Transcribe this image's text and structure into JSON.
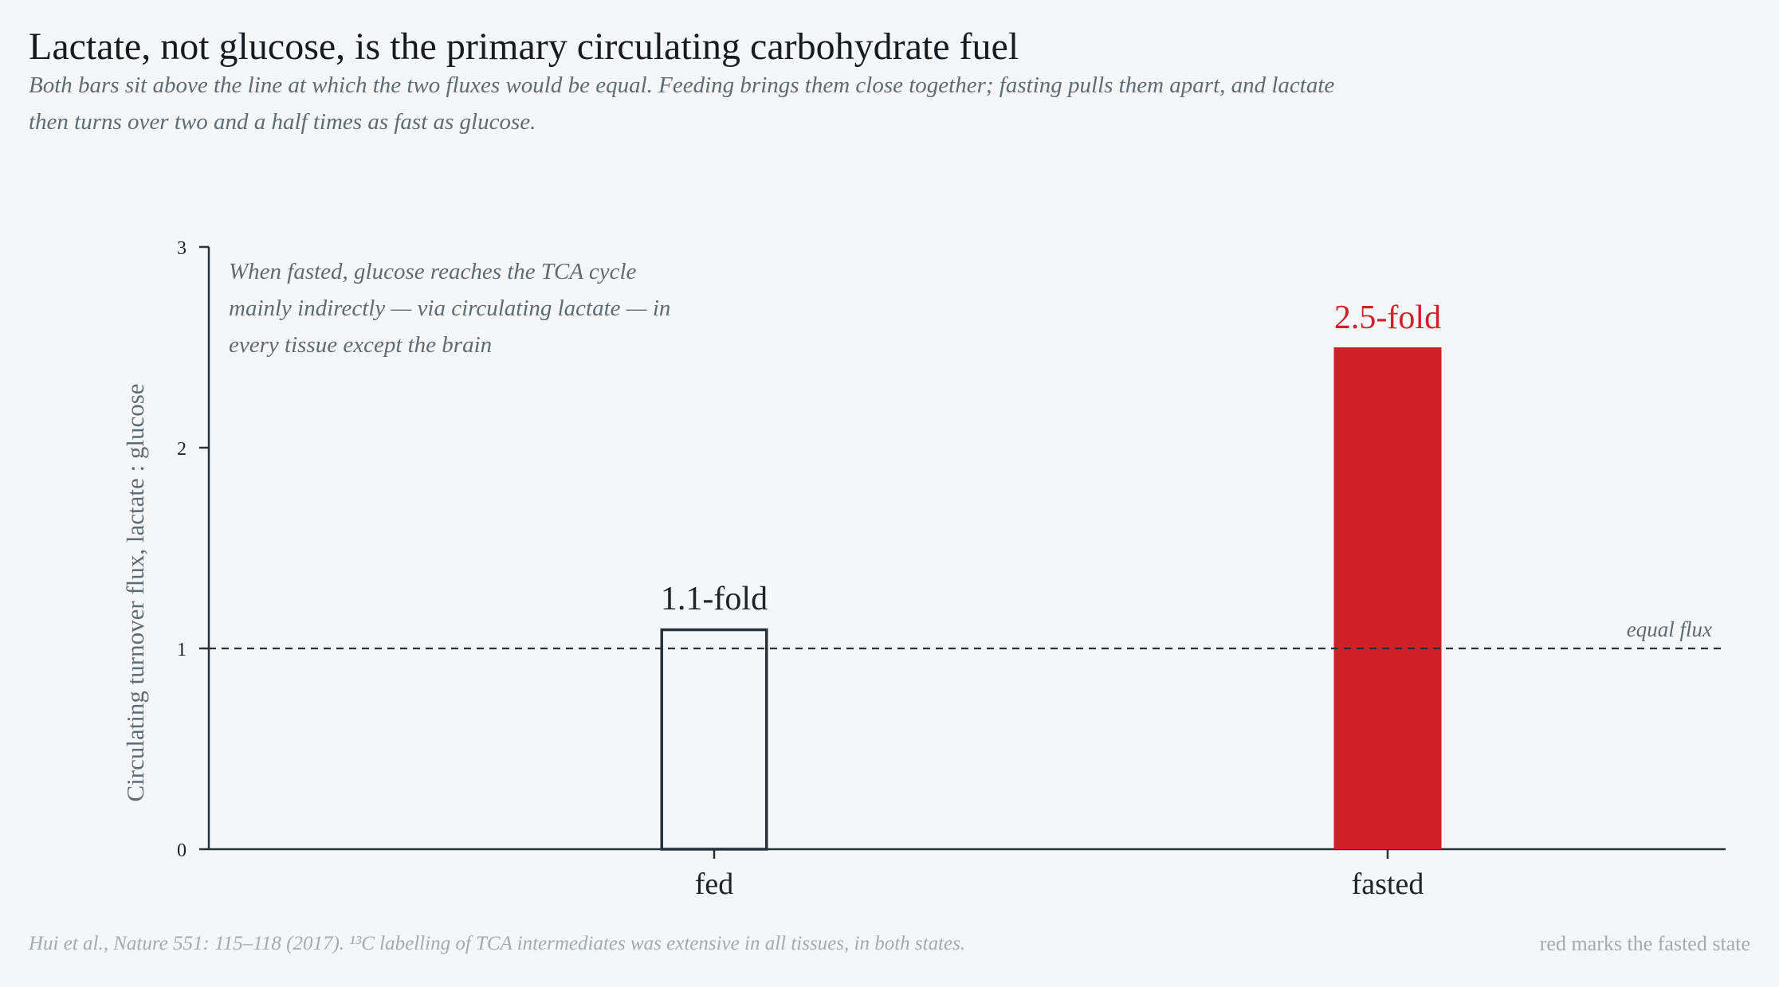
{
  "chart_data": {
    "type": "bar",
    "title": "Lactate, not glucose, is the primary circulating carbohydrate fuel",
    "subtitle": "Both bars sit above the line at which the two fluxes would be equal. Feeding brings them close together; fasting pulls them apart, and lactate then turns over two and a half times as fast as glucose.",
    "xlabel": "",
    "ylabel": "Circulating turnover flux, lactate : glucose",
    "categories": [
      "fed",
      "fasted"
    ],
    "values": [
      1.1,
      2.5
    ],
    "data_labels": [
      "1.1-fold",
      "2.5-fold"
    ],
    "ylim": [
      0,
      3
    ],
    "yticks": [
      0,
      1,
      2,
      3
    ],
    "ytick_labels": [
      "0",
      "1",
      "2",
      "3"
    ],
    "grid": false,
    "legend": "none",
    "reference_line": {
      "value": 1,
      "label": "equal flux"
    },
    "annotation": "When fasted, glucose reaches the TCA cycle mainly indirectly — via circulating lactate — in every tissue except the brain",
    "highlight": {
      "category": "fasted",
      "color": "#d0202a"
    },
    "colors": {
      "highlight": "#d0202a",
      "outline": "#283136",
      "axis": "#283136",
      "muted_text": "#5f6b73"
    }
  },
  "footer": {
    "source": "Hui et al., Nature 551: 115–118 (2017). ¹³C labelling of TCA intermediates was extensive in all tissues, in both states.",
    "note": "red marks the fasted state"
  }
}
